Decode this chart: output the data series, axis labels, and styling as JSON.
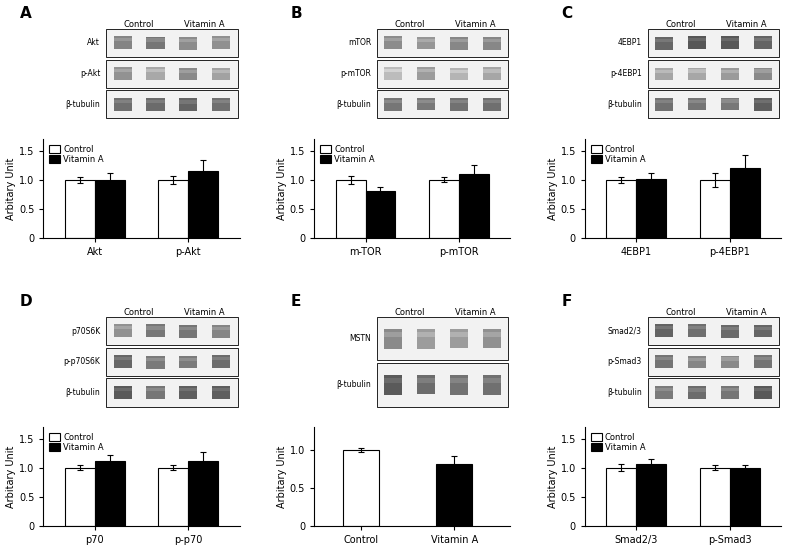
{
  "panels": {
    "A": {
      "label": "A",
      "blot_rows": [
        "Akt",
        "p-Akt",
        "β-tubulin"
      ],
      "blot_row_intensities": [
        0.55,
        0.45,
        0.65
      ],
      "bar_groups": [
        "Akt",
        "p-Akt"
      ],
      "control_vals": [
        1.0,
        1.0
      ],
      "vitamina_vals": [
        1.0,
        1.15
      ],
      "control_err": [
        0.05,
        0.07
      ],
      "vitamina_err": [
        0.12,
        0.18
      ],
      "ylabel": "Arbitary Unit",
      "ylim": [
        0.0,
        1.7
      ],
      "yticks": [
        0.0,
        0.5,
        1.0,
        1.5
      ],
      "is_single": false
    },
    "B": {
      "label": "B",
      "blot_rows": [
        "mTOR",
        "p-mTOR",
        "β-tubulin"
      ],
      "blot_row_intensities": [
        0.5,
        0.35,
        0.65
      ],
      "bar_groups": [
        "m-TOR",
        "p-mTOR"
      ],
      "control_vals": [
        1.0,
        1.0
      ],
      "vitamina_vals": [
        0.8,
        1.1
      ],
      "control_err": [
        0.07,
        0.04
      ],
      "vitamina_err": [
        0.08,
        0.15
      ],
      "ylabel": "Arbitary Unit",
      "ylim": [
        0.0,
        1.7
      ],
      "yticks": [
        0.0,
        0.5,
        1.0,
        1.5
      ],
      "is_single": false
    },
    "C": {
      "label": "C",
      "blot_rows": [
        "4EBP1",
        "p-4EBP1",
        "β-tubulin"
      ],
      "blot_row_intensities": [
        0.65,
        0.45,
        0.65
      ],
      "bar_groups": [
        "4EBP1",
        "p-4EBP1"
      ],
      "control_vals": [
        1.0,
        1.0
      ],
      "vitamina_vals": [
        1.02,
        1.2
      ],
      "control_err": [
        0.05,
        0.12
      ],
      "vitamina_err": [
        0.09,
        0.22
      ],
      "ylabel": "Arbitary Unit",
      "ylim": [
        0.0,
        1.7
      ],
      "yticks": [
        0.0,
        0.5,
        1.0,
        1.5
      ],
      "is_single": false
    },
    "D": {
      "label": "D",
      "blot_rows": [
        "p70S6K",
        "p-p70S6K",
        "β-tubulin"
      ],
      "blot_row_intensities": [
        0.55,
        0.6,
        0.65
      ],
      "bar_groups": [
        "p70",
        "p-p70"
      ],
      "control_vals": [
        1.0,
        1.0
      ],
      "vitamina_vals": [
        1.12,
        1.12
      ],
      "control_err": [
        0.04,
        0.04
      ],
      "vitamina_err": [
        0.1,
        0.15
      ],
      "ylabel": "Arbitary Unit",
      "ylim": [
        0.0,
        1.7
      ],
      "yticks": [
        0.0,
        0.5,
        1.0,
        1.5
      ],
      "is_single": false
    },
    "E": {
      "label": "E",
      "blot_rows": [
        "MSTN",
        "β-tubulin"
      ],
      "blot_row_intensities": [
        0.5,
        0.65
      ],
      "bar_groups": [
        "Control",
        "Vitamin A"
      ],
      "control_vals": [
        1.0
      ],
      "vitamina_vals": [
        0.82
      ],
      "control_err": [
        0.03
      ],
      "vitamina_err": [
        0.1
      ],
      "ylabel": "Arbitary Unit",
      "ylim": [
        0.0,
        1.3
      ],
      "yticks": [
        0.0,
        0.5,
        1.0
      ],
      "is_single": true
    },
    "F": {
      "label": "F",
      "blot_rows": [
        "Smad2/3",
        "p-Smad3",
        "β-tubulin"
      ],
      "blot_row_intensities": [
        0.6,
        0.55,
        0.65
      ],
      "bar_groups": [
        "Smad2/3",
        "p-Smad3"
      ],
      "control_vals": [
        1.0,
        1.0
      ],
      "vitamina_vals": [
        1.07,
        1.0
      ],
      "control_err": [
        0.06,
        0.04
      ],
      "vitamina_err": [
        0.08,
        0.05
      ],
      "ylabel": "Arbitary Unit",
      "ylim": [
        0.0,
        1.7
      ],
      "yticks": [
        0.0,
        0.5,
        1.0,
        1.5
      ],
      "is_single": false
    }
  },
  "bar_width": 0.32,
  "control_color": "white",
  "vitamina_color": "black",
  "edge_color": "black",
  "fig_width": 7.89,
  "fig_height": 5.48
}
